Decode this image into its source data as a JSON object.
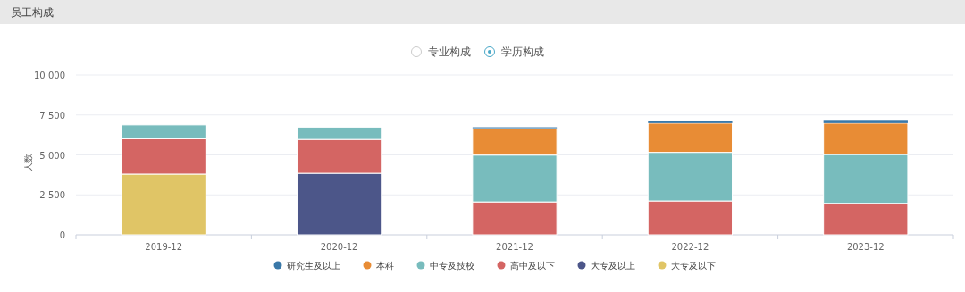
{
  "chart_data": {
    "type": "bar",
    "title": "员工构成",
    "annotations": [
      "专业构成",
      "学历构成"
    ],
    "ylabel": "人数",
    "stacked": true,
    "grid": "y",
    "legend": "bottom",
    "categories": [
      "2019-12",
      "2020-12",
      "2021-12",
      "2022-12",
      "2023-12"
    ],
    "ylim": [
      0,
      10000
    ],
    "yticks": [
      0,
      {
        "value": 2500,
        "label": "2 500"
      },
      {
        "value": 5000,
        "label": "5 000"
      },
      {
        "value": 7500,
        "label": "7 500"
      },
      {
        "value": 10000,
        "label": "10 000"
      }
    ],
    "series": [
      {
        "name": "大专及以下",
        "color": "#e0c566",
        "values": [
          3800,
          null,
          null,
          null,
          null
        ]
      },
      {
        "name": "大专及以上",
        "color": "#4c5689",
        "values": [
          null,
          3850,
          null,
          null,
          null
        ]
      },
      {
        "name": "高中及以下",
        "color": "#d46563",
        "values": [
          2210,
          2120,
          2060,
          2120,
          1970
        ]
      },
      {
        "name": "中专及技校",
        "color": "#78bcbd",
        "values": [
          870,
          770,
          2930,
          3040,
          3060
        ]
      },
      {
        "name": "本科",
        "color": "#e88c35",
        "values": [
          null,
          null,
          1680,
          1830,
          1960
        ]
      },
      {
        "name": "研究生及以上",
        "color": "#3a78a8",
        "values": [
          null,
          null,
          60,
          140,
          200
        ]
      }
    ]
  }
}
